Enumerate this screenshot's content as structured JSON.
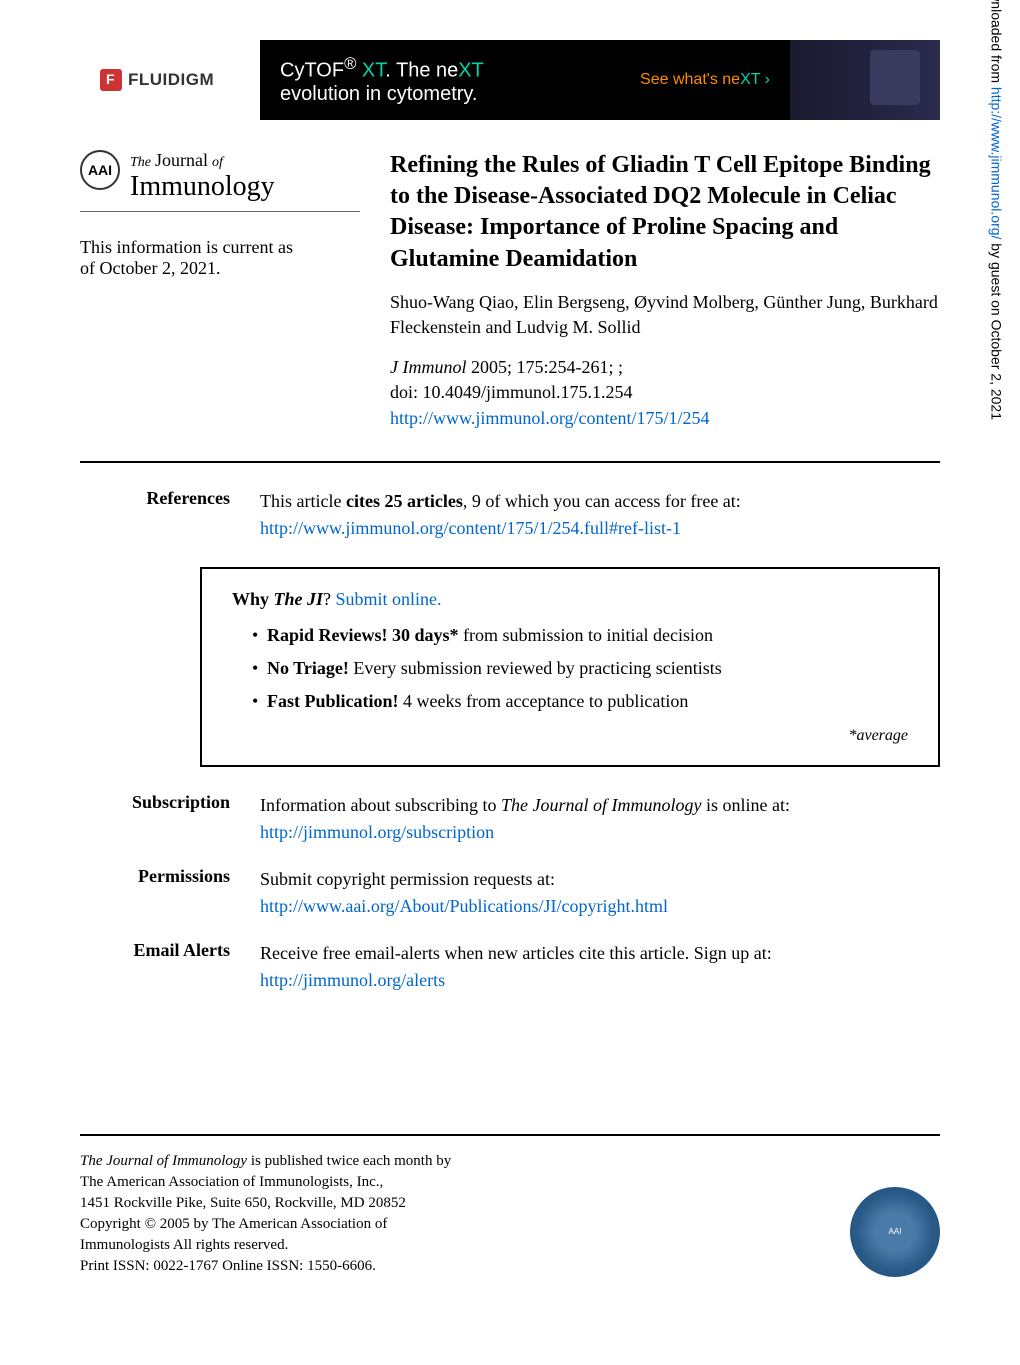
{
  "banner": {
    "brand": "FLUIDIGM",
    "title_prefix": "CyTOF",
    "title_sup": "®",
    "title_xt": " XT",
    "title_suffix": ". The ne",
    "title_xt2": "XT",
    "subtitle": "evolution in cytometry.",
    "cta_prefix": "See what's ne",
    "cta_xt": "XT ›"
  },
  "journal": {
    "the": "The",
    "journal": "Journal",
    "of": "of",
    "immunology": "Immunology",
    "badge": "AAI"
  },
  "current_info": {
    "line1": "This information is current as",
    "line2": "of October 2, 2021."
  },
  "article": {
    "title": "Refining the Rules of Gliadin T Cell Epitope Binding to the Disease-Associated DQ2 Molecule in Celiac Disease: Importance of Proline Spacing and Glutamine Deamidation",
    "authors": "Shuo-Wang Qiao, Elin Bergseng, Øyvind Molberg, Günther Jung, Burkhard Fleckenstein and Ludvig M. Sollid",
    "citation_journal": "J Immunol",
    "citation_year_pages": " 2005; 175:254-261; ;",
    "doi": "doi: 10.4049/jimmunol.175.1.254",
    "url": "http://www.jimmunol.org/content/175/1/254"
  },
  "references": {
    "label": "References",
    "text_prefix": "This article ",
    "text_bold": "cites 25 articles",
    "text_suffix": ", 9 of which you can access for free at:",
    "url": "http://www.jimmunol.org/content/175/1/254.full#ref-list-1"
  },
  "why_box": {
    "why": "Why ",
    "theji": "The JI",
    "question": "? ",
    "submit_link": "Submit online.",
    "items": [
      {
        "bold": "Rapid Reviews! 30 days*",
        "rest": " from submission to initial decision"
      },
      {
        "bold": "No Triage!",
        "rest": " Every submission reviewed by practicing scientists"
      },
      {
        "bold": "Fast Publication!",
        "rest": " 4 weeks from acceptance to publication"
      }
    ],
    "average": "*average"
  },
  "subscription": {
    "label": "Subscription",
    "text_prefix": "Information about subscribing to ",
    "text_ital": "The Journal of Immunology",
    "text_suffix": " is online at:",
    "url": "http://jimmunol.org/subscription"
  },
  "permissions": {
    "label": "Permissions",
    "text": "Submit copyright permission requests at:",
    "url": "http://www.aai.org/About/Publications/JI/copyright.html"
  },
  "email_alerts": {
    "label": "Email Alerts",
    "text": "Receive free email-alerts when new articles cite this article. Sign up at:",
    "url": "http://jimmunol.org/alerts"
  },
  "footer": {
    "line1_ital": "The Journal of Immunology",
    "line1_rest": " is published twice each month by",
    "line2": "The American Association of Immunologists, Inc.,",
    "line3": "1451 Rockville Pike, Suite 650, Rockville, MD 20852",
    "line4": "Copyright © 2005 by The American Association of",
    "line5": "Immunologists All rights reserved.",
    "line6": "Print ISSN: 0022-1767 Online ISSN: 1550-6606."
  },
  "sidebar": {
    "prefix": "Downloaded from ",
    "url": "http://www.jimmunol.org/",
    "suffix": " by guest on October 2, 2021"
  },
  "colors": {
    "link": "#0066cc",
    "banner_bg": "#000000",
    "banner_teal": "#00d4a8",
    "banner_orange": "#ff8c00",
    "fluidigm_red": "#cc3333",
    "seal_blue": "#2a5b88"
  }
}
